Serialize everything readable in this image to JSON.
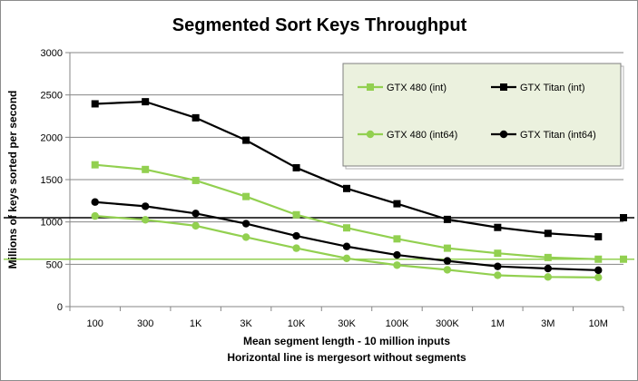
{
  "chart_data": {
    "type": "line",
    "title": "Segmented Sort Keys Throughput",
    "xlabel": "Mean segment length - 10 million inputs",
    "xlabel2": "Horizontal line is mergesort without segments",
    "ylabel": "Millions of keys  sorted per second",
    "categories": [
      "100",
      "300",
      "1K",
      "3K",
      "10K",
      "30K",
      "100K",
      "300K",
      "1M",
      "3M",
      "10M"
    ],
    "ylim": [
      0,
      3000
    ],
    "yticks": [
      "0",
      "500",
      "1000",
      "1500",
      "2000",
      "2500",
      "3000"
    ],
    "grid": true,
    "legend_position": "top-right",
    "series": [
      {
        "name": "GTX 480 (int)",
        "color": "#92d050",
        "marker": "square",
        "values": [
          1675,
          1620,
          1490,
          1300,
          1085,
          930,
          800,
          690,
          630,
          580,
          560
        ]
      },
      {
        "name": "GTX Titan (int)",
        "color": "#000000",
        "marker": "square",
        "values": [
          2395,
          2420,
          2230,
          1965,
          1640,
          1395,
          1215,
          1030,
          935,
          865,
          825
        ]
      },
      {
        "name": "GTX 480 (int64)",
        "color": "#92d050",
        "marker": "circle",
        "values": [
          1070,
          1025,
          955,
          820,
          690,
          570,
          490,
          435,
          370,
          350,
          345
        ]
      },
      {
        "name": "GTX Titan (int64)",
        "color": "#000000",
        "marker": "circle",
        "values": [
          1235,
          1185,
          1100,
          980,
          835,
          710,
          610,
          540,
          475,
          450,
          430
        ]
      }
    ],
    "baselines": [
      {
        "color": "#000000",
        "value": 1050
      },
      {
        "color": "#92d050",
        "value": 560
      }
    ]
  }
}
